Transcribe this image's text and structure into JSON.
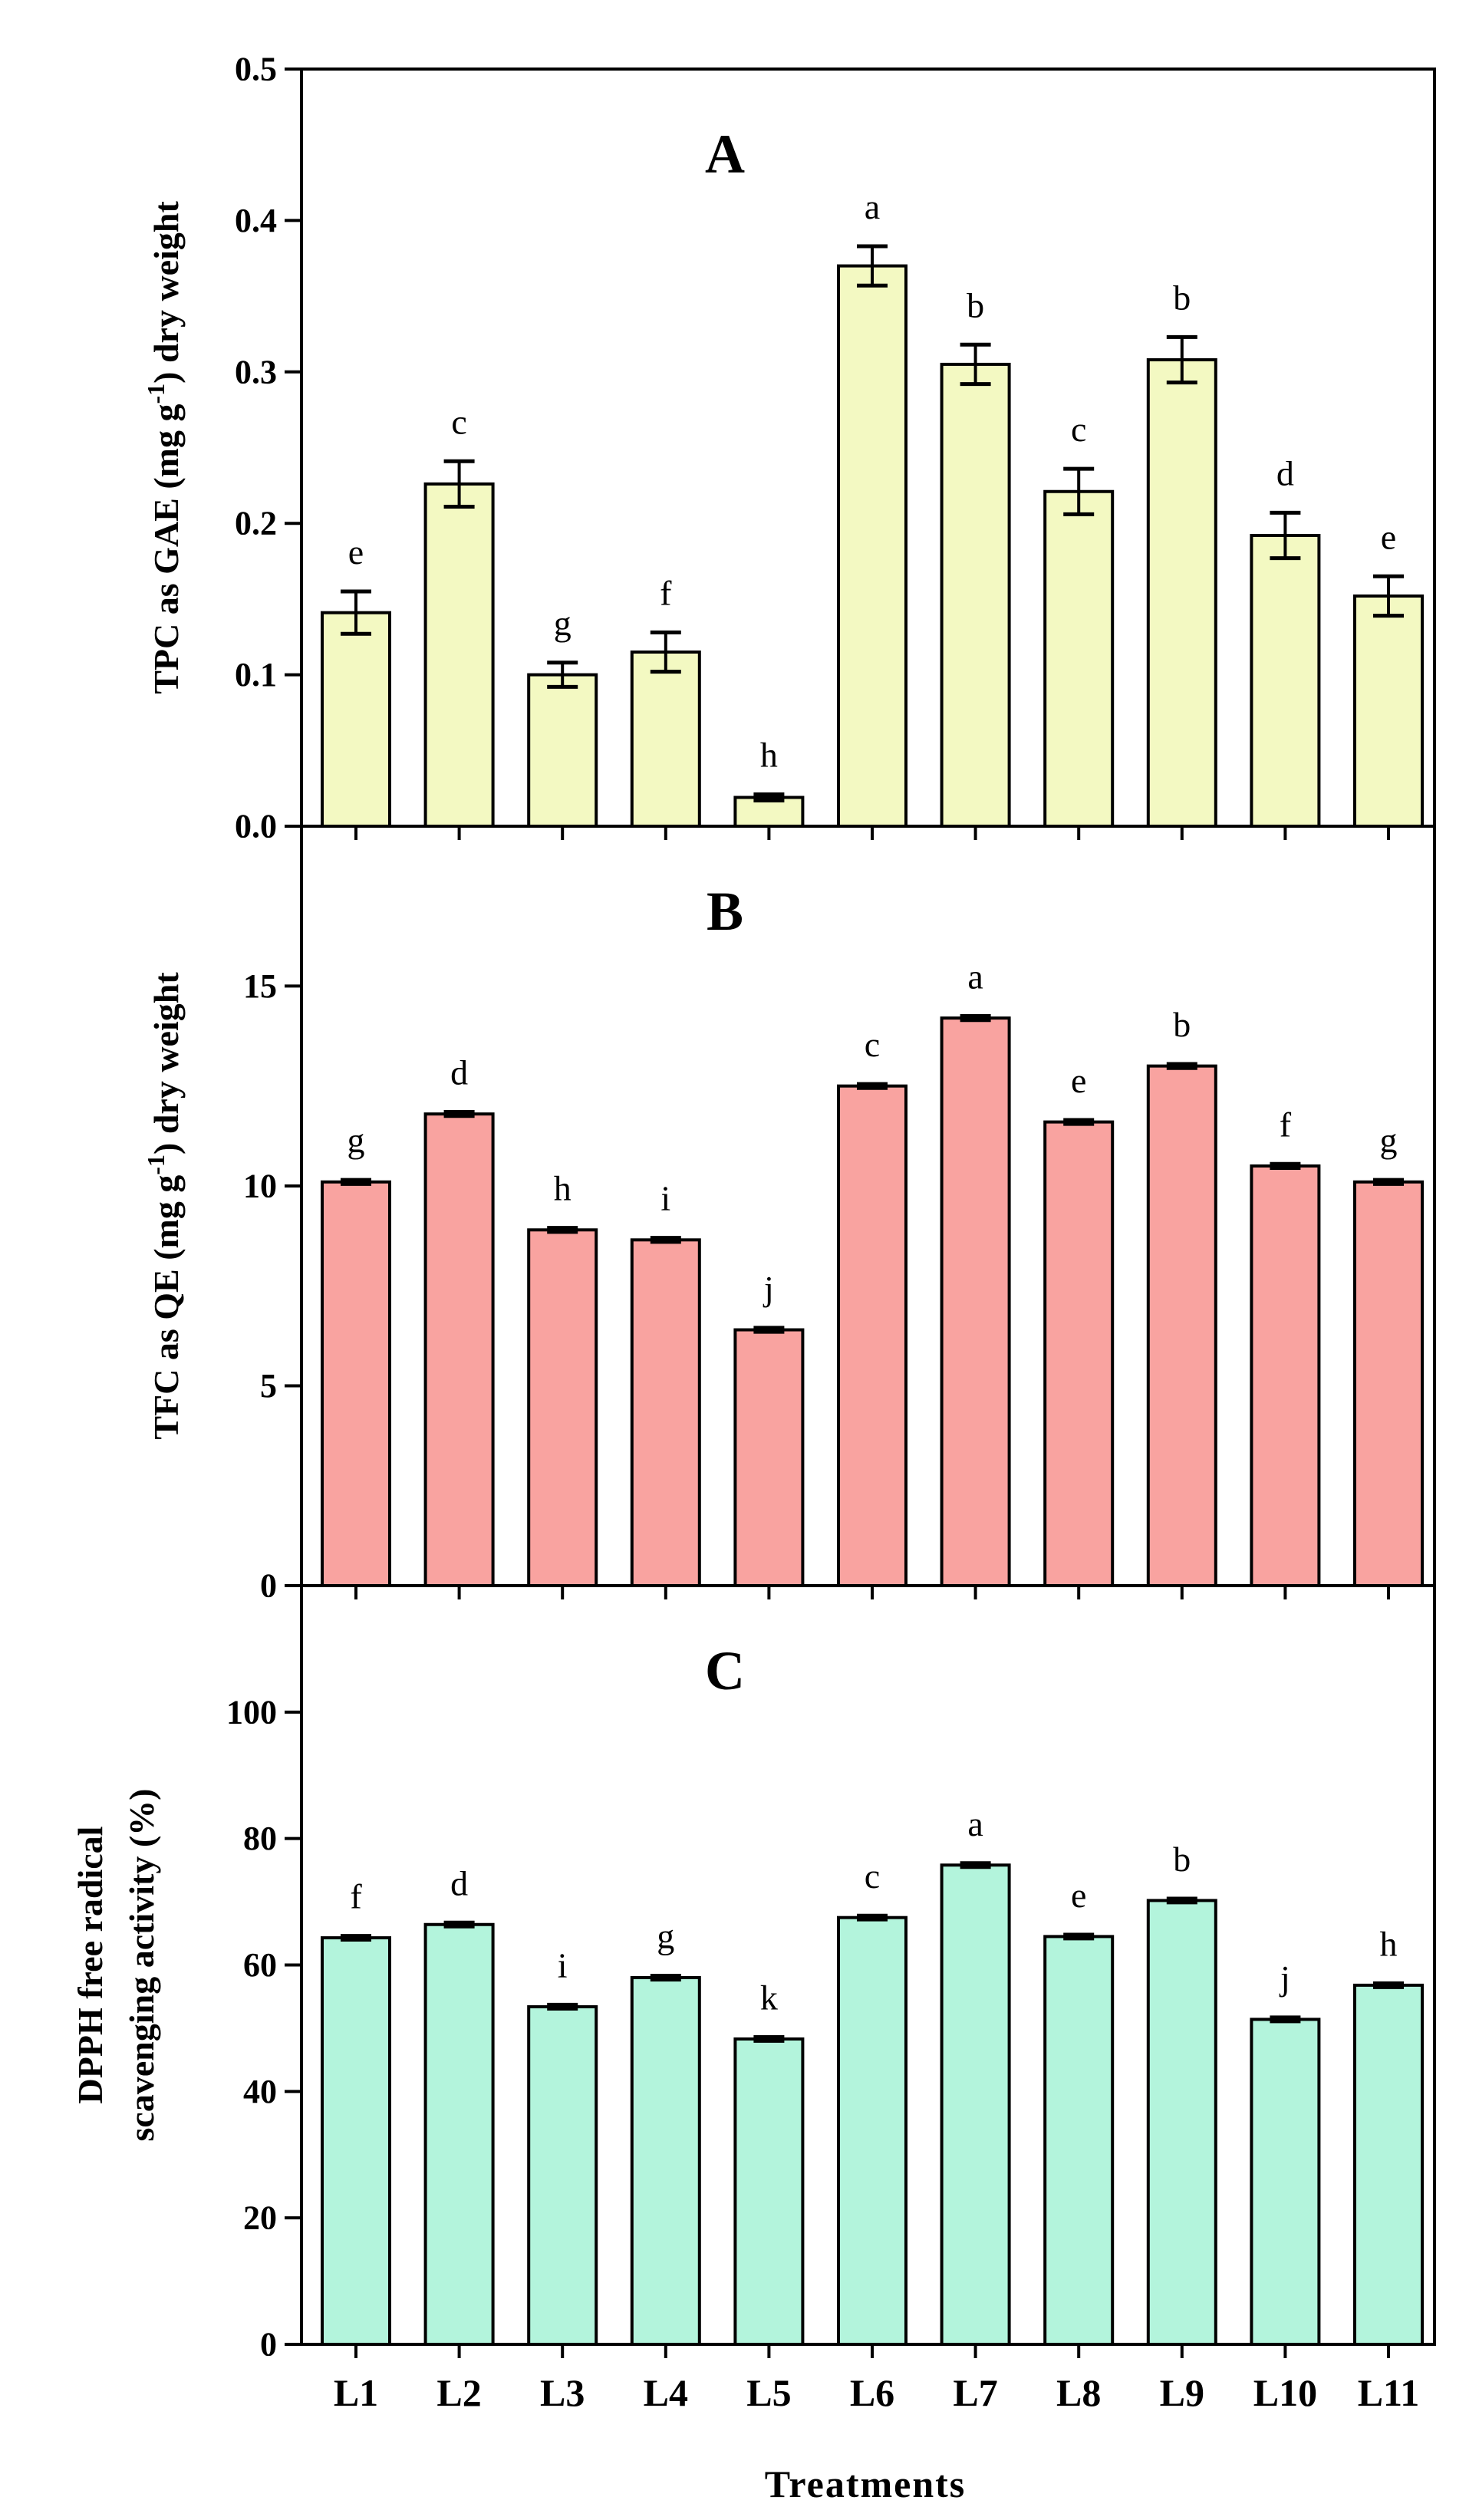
{
  "chart_data": [
    {
      "type": "bar",
      "panel": "A",
      "title": "A",
      "ylabel_parts": [
        "TPC as GAE (mg g",
        "-1",
        ") dry weight"
      ],
      "ylim": [
        0,
        0.5
      ],
      "yticks": [
        0.0,
        0.1,
        0.2,
        0.3,
        0.4,
        0.5
      ],
      "ytick_labels": [
        "0.0",
        "0.1",
        "0.2",
        "0.3",
        "0.4",
        "0.5"
      ],
      "categories": [
        "L1",
        "L2",
        "L3",
        "L4",
        "L5",
        "L6",
        "L7",
        "L8",
        "L9",
        "L10",
        "L11"
      ],
      "values": [
        0.141,
        0.226,
        0.1,
        0.115,
        0.019,
        0.37,
        0.305,
        0.221,
        0.308,
        0.192,
        0.152
      ],
      "errors": [
        0.014,
        0.015,
        0.008,
        0.013,
        0.002,
        0.013,
        0.013,
        0.015,
        0.015,
        0.015,
        0.013
      ],
      "letters": [
        "e",
        "c",
        "g",
        "f",
        "h",
        "a",
        "b",
        "c",
        "b",
        "d",
        "e"
      ],
      "color": "#f3f9c2"
    },
    {
      "type": "bar",
      "panel": "B",
      "title": "B",
      "ylabel_parts": [
        "TFC as QE (mg g",
        "-1",
        ") dry weight"
      ],
      "ylim": [
        0,
        19
      ],
      "yticks": [
        0,
        5,
        10,
        15
      ],
      "ytick_labels": [
        "0",
        "5",
        "10",
        "15"
      ],
      "categories": [
        "L1",
        "L2",
        "L3",
        "L4",
        "L5",
        "L6",
        "L7",
        "L8",
        "L9",
        "L10",
        "L11"
      ],
      "values": [
        10.1,
        11.8,
        8.9,
        8.65,
        6.4,
        12.5,
        14.2,
        11.6,
        13.0,
        10.5,
        10.1
      ],
      "errors": [
        0.05,
        0.05,
        0.05,
        0.05,
        0.05,
        0.05,
        0.05,
        0.05,
        0.05,
        0.05,
        0.05
      ],
      "letters": [
        "g",
        "d",
        "h",
        "i",
        "j",
        "c",
        "a",
        "e",
        "b",
        "f",
        "g"
      ],
      "color": "#f9a3a0"
    },
    {
      "type": "bar",
      "panel": "C",
      "title": "C",
      "ylabel_lines": [
        "DPPH free radical",
        "scavenging activity (%)"
      ],
      "ylim": [
        0,
        120
      ],
      "yticks": [
        0,
        20,
        40,
        60,
        80,
        100
      ],
      "ytick_labels": [
        "0",
        "20",
        "40",
        "60",
        "80",
        "100"
      ],
      "categories": [
        "L1",
        "L2",
        "L3",
        "L4",
        "L5",
        "L6",
        "L7",
        "L8",
        "L9",
        "L10",
        "L11"
      ],
      "values": [
        64.3,
        66.4,
        53.4,
        58.0,
        48.3,
        67.5,
        75.8,
        64.5,
        70.2,
        51.4,
        56.8
      ],
      "errors": [
        0.3,
        0.3,
        0.3,
        0.3,
        0.3,
        0.3,
        0.3,
        0.3,
        0.3,
        0.3,
        0.3
      ],
      "letters": [
        "f",
        "d",
        "i",
        "g",
        "k",
        "c",
        "a",
        "e",
        "b",
        "j",
        "h"
      ],
      "color": "#b3f4dc"
    }
  ],
  "xlabel": "Treatments"
}
